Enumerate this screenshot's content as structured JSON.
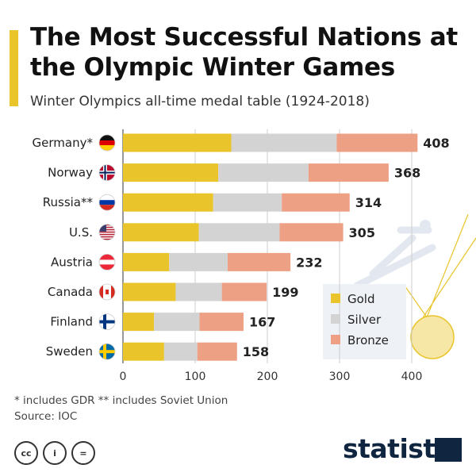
{
  "title": "The Most Successful Nations at the Olympic Winter Games",
  "subtitle": "Winter Olympics all-time medal table (1924-2018)",
  "footnotes": {
    "note": "* includes GDR    ** includes Soviet Union",
    "source": "Source: IOC"
  },
  "brand": "statista",
  "license_icons": [
    "cc-icon",
    "person-icon",
    "equals-icon"
  ],
  "colors": {
    "gold": "#e9c42a",
    "silver": "#d3d3d3",
    "bronze": "#eda083",
    "accent": "#e9c42a"
  },
  "chart_data": {
    "type": "bar",
    "orientation": "horizontal",
    "stacked": true,
    "categories": [
      "Germany*",
      "Norway",
      "Russia**",
      "U.S.",
      "Austria",
      "Canada",
      "Finland",
      "Sweden"
    ],
    "series": [
      {
        "name": "Gold",
        "values": [
          150,
          132,
          125,
          105,
          64,
          73,
          43,
          57
        ]
      },
      {
        "name": "Silver",
        "values": [
          146,
          125,
          95,
          112,
          81,
          64,
          63,
          46
        ]
      },
      {
        "name": "Bronze",
        "values": [
          112,
          111,
          94,
          88,
          87,
          62,
          61,
          55
        ]
      }
    ],
    "totals": [
      408,
      368,
      314,
      305,
      232,
      199,
      167,
      158
    ],
    "xticks": [
      "0",
      "100",
      "200",
      "300",
      "400"
    ],
    "xlim": [
      0,
      400
    ],
    "grid": true,
    "legend": "bottom-right",
    "flags": [
      "germany-flag-icon",
      "norway-flag-icon",
      "russia-flag-icon",
      "us-flag-icon",
      "austria-flag-icon",
      "canada-flag-icon",
      "finland-flag-icon",
      "sweden-flag-icon"
    ]
  }
}
